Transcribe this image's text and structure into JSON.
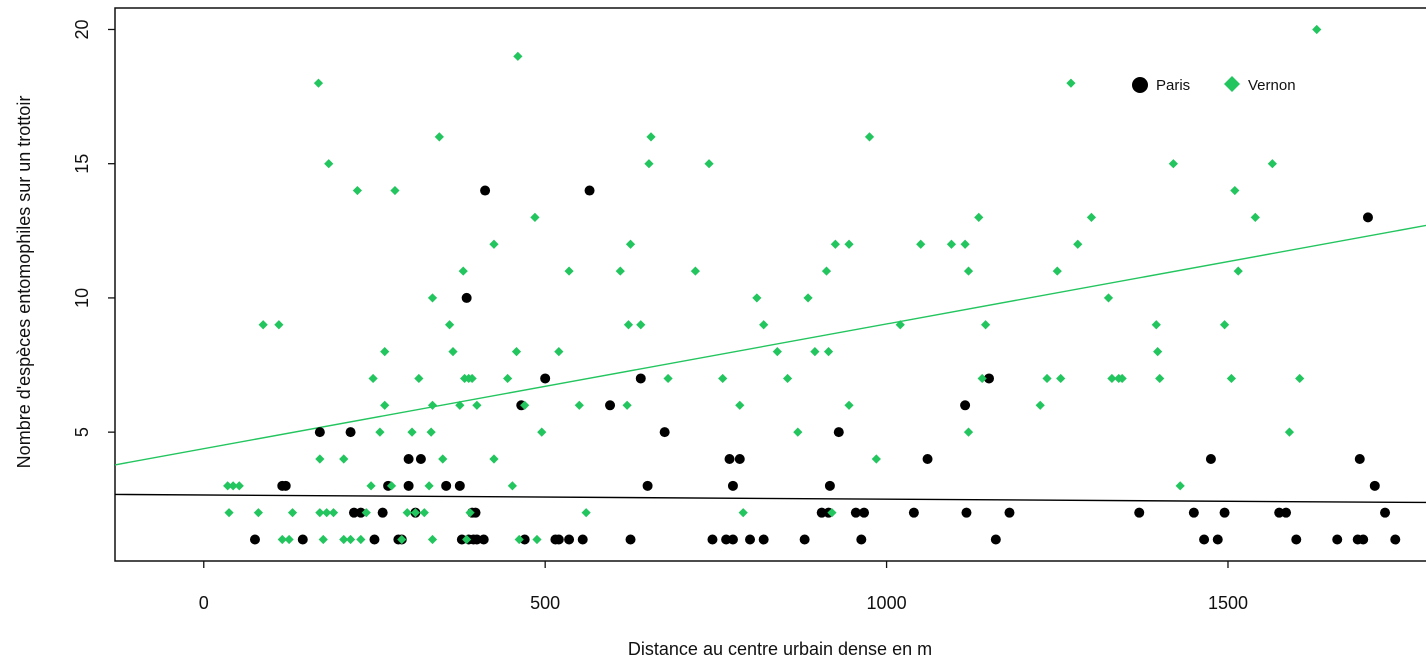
{
  "chart_data": {
    "type": "scatter",
    "title": "",
    "xlabel": "Distance au centre urbain dense en m",
    "ylabel": "Nombre d'espèces entomophiles sur un trottoir",
    "xlim": [
      -130,
      1790
    ],
    "ylim": [
      0.2,
      20.8
    ],
    "xticks": [
      0,
      500,
      1000,
      1500
    ],
    "yticks": [
      5,
      10,
      15,
      20
    ],
    "grid": false,
    "legend_position": "top-right",
    "series": [
      {
        "name": "Paris",
        "marker": "circle",
        "color": "#000000",
        "points": [
          [
            75,
            1
          ],
          [
            115,
            3
          ],
          [
            120,
            3
          ],
          [
            145,
            1
          ],
          [
            170,
            5
          ],
          [
            215,
            5
          ],
          [
            220,
            2
          ],
          [
            230,
            2
          ],
          [
            250,
            1
          ],
          [
            262,
            2
          ],
          [
            270,
            3
          ],
          [
            285,
            1
          ],
          [
            290,
            1
          ],
          [
            300,
            4
          ],
          [
            300,
            3
          ],
          [
            310,
            2
          ],
          [
            318,
            4
          ],
          [
            355,
            3
          ],
          [
            375,
            3
          ],
          [
            378,
            1
          ],
          [
            385,
            10
          ],
          [
            388,
            1
          ],
          [
            393,
            2
          ],
          [
            395,
            1
          ],
          [
            398,
            2
          ],
          [
            400,
            1
          ],
          [
            410,
            1
          ],
          [
            412,
            14
          ],
          [
            465,
            6
          ],
          [
            470,
            1
          ],
          [
            500,
            7
          ],
          [
            515,
            1
          ],
          [
            520,
            1
          ],
          [
            535,
            1
          ],
          [
            555,
            1
          ],
          [
            565,
            14
          ],
          [
            595,
            6
          ],
          [
            625,
            1
          ],
          [
            640,
            7
          ],
          [
            650,
            3
          ],
          [
            675,
            5
          ],
          [
            745,
            1
          ],
          [
            765,
            1
          ],
          [
            770,
            4
          ],
          [
            775,
            1
          ],
          [
            775,
            3
          ],
          [
            785,
            4
          ],
          [
            800,
            1
          ],
          [
            820,
            1
          ],
          [
            880,
            1
          ],
          [
            905,
            2
          ],
          [
            915,
            2
          ],
          [
            917,
            3
          ],
          [
            930,
            5
          ],
          [
            955,
            2
          ],
          [
            963,
            1
          ],
          [
            967,
            2
          ],
          [
            1040,
            2
          ],
          [
            1060,
            4
          ],
          [
            1115,
            6
          ],
          [
            1117,
            2
          ],
          [
            1150,
            7
          ],
          [
            1160,
            1
          ],
          [
            1180,
            2
          ],
          [
            1370,
            2
          ],
          [
            1450,
            2
          ],
          [
            1465,
            1
          ],
          [
            1475,
            4
          ],
          [
            1485,
            1
          ],
          [
            1495,
            2
          ],
          [
            1575,
            2
          ],
          [
            1585,
            2
          ],
          [
            1600,
            1
          ],
          [
            1660,
            1
          ],
          [
            1690,
            1
          ],
          [
            1693,
            4
          ],
          [
            1698,
            1
          ],
          [
            1705,
            13
          ],
          [
            1715,
            3
          ],
          [
            1730,
            2
          ],
          [
            1745,
            1
          ]
        ]
      },
      {
        "name": "Vernon",
        "marker": "diamond",
        "color": "#22c55e",
        "points": [
          [
            35,
            3
          ],
          [
            37,
            2
          ],
          [
            43,
            3
          ],
          [
            52,
            3
          ],
          [
            80,
            2
          ],
          [
            87,
            9
          ],
          [
            110,
            9
          ],
          [
            115,
            1
          ],
          [
            125,
            1
          ],
          [
            130,
            2
          ],
          [
            168,
            18
          ],
          [
            170,
            4
          ],
          [
            170,
            2
          ],
          [
            175,
            1
          ],
          [
            180,
            2
          ],
          [
            183,
            15
          ],
          [
            190,
            2
          ],
          [
            205,
            1
          ],
          [
            205,
            4
          ],
          [
            215,
            1
          ],
          [
            225,
            14
          ],
          [
            230,
            1
          ],
          [
            238,
            2
          ],
          [
            245,
            3
          ],
          [
            248,
            7
          ],
          [
            258,
            5
          ],
          [
            265,
            8
          ],
          [
            265,
            6
          ],
          [
            275,
            3
          ],
          [
            280,
            14
          ],
          [
            290,
            1
          ],
          [
            298,
            2
          ],
          [
            305,
            5
          ],
          [
            310,
            2
          ],
          [
            315,
            7
          ],
          [
            323,
            2
          ],
          [
            330,
            3
          ],
          [
            333,
            5
          ],
          [
            335,
            6
          ],
          [
            335,
            1
          ],
          [
            335,
            10
          ],
          [
            345,
            16
          ],
          [
            350,
            4
          ],
          [
            360,
            9
          ],
          [
            365,
            8
          ],
          [
            375,
            6
          ],
          [
            380,
            11
          ],
          [
            382,
            7
          ],
          [
            385,
            1
          ],
          [
            388,
            7
          ],
          [
            390,
            2
          ],
          [
            393,
            7
          ],
          [
            400,
            6
          ],
          [
            425,
            12
          ],
          [
            425,
            4
          ],
          [
            445,
            7
          ],
          [
            452,
            3
          ],
          [
            458,
            8
          ],
          [
            460,
            19
          ],
          [
            462,
            1
          ],
          [
            470,
            6
          ],
          [
            485,
            13
          ],
          [
            488,
            1
          ],
          [
            495,
            5
          ],
          [
            520,
            8
          ],
          [
            535,
            11
          ],
          [
            550,
            6
          ],
          [
            560,
            2
          ],
          [
            610,
            11
          ],
          [
            620,
            6
          ],
          [
            622,
            9
          ],
          [
            625,
            12
          ],
          [
            640,
            9
          ],
          [
            652,
            15
          ],
          [
            655,
            16
          ],
          [
            680,
            7
          ],
          [
            720,
            11
          ],
          [
            740,
            15
          ],
          [
            760,
            7
          ],
          [
            785,
            6
          ],
          [
            790,
            2
          ],
          [
            810,
            10
          ],
          [
            820,
            9
          ],
          [
            840,
            8
          ],
          [
            855,
            7
          ],
          [
            870,
            5
          ],
          [
            885,
            10
          ],
          [
            895,
            8
          ],
          [
            912,
            11
          ],
          [
            915,
            8
          ],
          [
            920,
            2
          ],
          [
            925,
            12
          ],
          [
            945,
            12
          ],
          [
            945,
            6
          ],
          [
            975,
            16
          ],
          [
            985,
            4
          ],
          [
            1020,
            9
          ],
          [
            1050,
            12
          ],
          [
            1095,
            12
          ],
          [
            1115,
            12
          ],
          [
            1120,
            11
          ],
          [
            1120,
            5
          ],
          [
            1135,
            13
          ],
          [
            1140,
            7
          ],
          [
            1145,
            9
          ],
          [
            1225,
            6
          ],
          [
            1235,
            7
          ],
          [
            1250,
            11
          ],
          [
            1255,
            7
          ],
          [
            1270,
            18
          ],
          [
            1280,
            12
          ],
          [
            1300,
            13
          ],
          [
            1325,
            10
          ],
          [
            1330,
            7
          ],
          [
            1340,
            7
          ],
          [
            1345,
            7
          ],
          [
            1395,
            9
          ],
          [
            1397,
            8
          ],
          [
            1400,
            7
          ],
          [
            1420,
            15
          ],
          [
            1430,
            3
          ],
          [
            1495,
            9
          ],
          [
            1505,
            7
          ],
          [
            1510,
            14
          ],
          [
            1515,
            11
          ],
          [
            1540,
            13
          ],
          [
            1565,
            15
          ],
          [
            1590,
            5
          ],
          [
            1605,
            7
          ],
          [
            1630,
            20
          ]
        ]
      }
    ],
    "regression_lines": [
      {
        "series": "Paris",
        "color": "#000000",
        "x": [
          -130,
          1790
        ],
        "y": [
          2.68,
          2.38
        ]
      },
      {
        "series": "Vernon",
        "color": "#22c55e",
        "x": [
          -130,
          1790
        ],
        "y": [
          3.78,
          12.7
        ]
      }
    ]
  }
}
